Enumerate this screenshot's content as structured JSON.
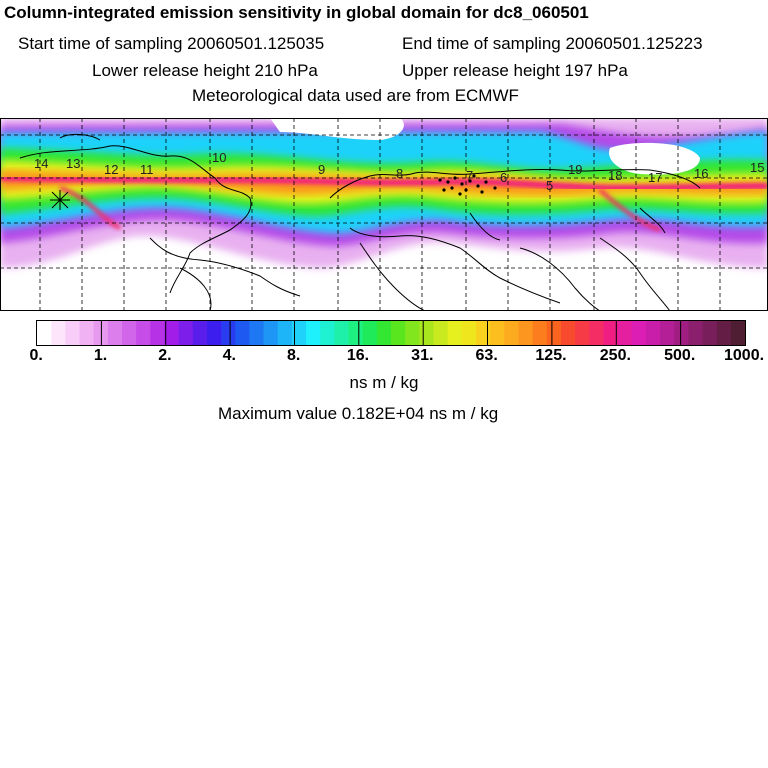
{
  "header": {
    "title": "Column-integrated emission sensitivity in global domain for dc8_060501",
    "start": "Start time of sampling 20060501.125035",
    "end": "End time of sampling 20060501.125223",
    "lower": "Lower release height  210 hPa",
    "upper": "Upper release height  197 hPa",
    "met": "Meteorological data used are from ECMWF"
  },
  "map": {
    "trajectory_labels": [
      "14",
      "13",
      "12",
      "11",
      "10",
      "9",
      "8",
      "7",
      "6",
      "5",
      "19",
      "18",
      "17",
      "16",
      "15"
    ]
  },
  "colorbar": {
    "ticks": [
      "0.",
      "1.",
      "2.",
      "4.",
      "8.",
      "16.",
      "31.",
      "63.",
      "125.",
      "250.",
      "500.",
      "1000."
    ],
    "colors": [
      "#ffffff",
      "#fde6fc",
      "#f8cdf8",
      "#f0b2f3",
      "#e699ef",
      "#dc7fec",
      "#d266ea",
      "#c64de8",
      "#b632e6",
      "#a21ee8",
      "#7d1eea",
      "#5a1eec",
      "#3c1eee",
      "#2a3cf0",
      "#1e5af2",
      "#1e78f4",
      "#1e96f6",
      "#1eb4f8",
      "#1ed2fa",
      "#1ef0fc",
      "#1ef0d2",
      "#1ef0aa",
      "#1ef082",
      "#1eea5a",
      "#32e632",
      "#5ae61e",
      "#82e61e",
      "#aae61e",
      "#c8ea1e",
      "#e6f01e",
      "#f0e61e",
      "#f8d21e",
      "#fcbe1e",
      "#fcaa1e",
      "#fc961e",
      "#fc7d1e",
      "#fa641e",
      "#f84b2d",
      "#f63a46",
      "#f42d64",
      "#f01e82",
      "#e61ea0",
      "#dc1eb4",
      "#c81eaa",
      "#b41e96",
      "#a01e82",
      "#8c1e6e",
      "#781e5a",
      "#641e46",
      "#501e32"
    ],
    "unit": "ns m / kg",
    "max_label": "Maximum value  0.182E+04 ns m / kg"
  }
}
